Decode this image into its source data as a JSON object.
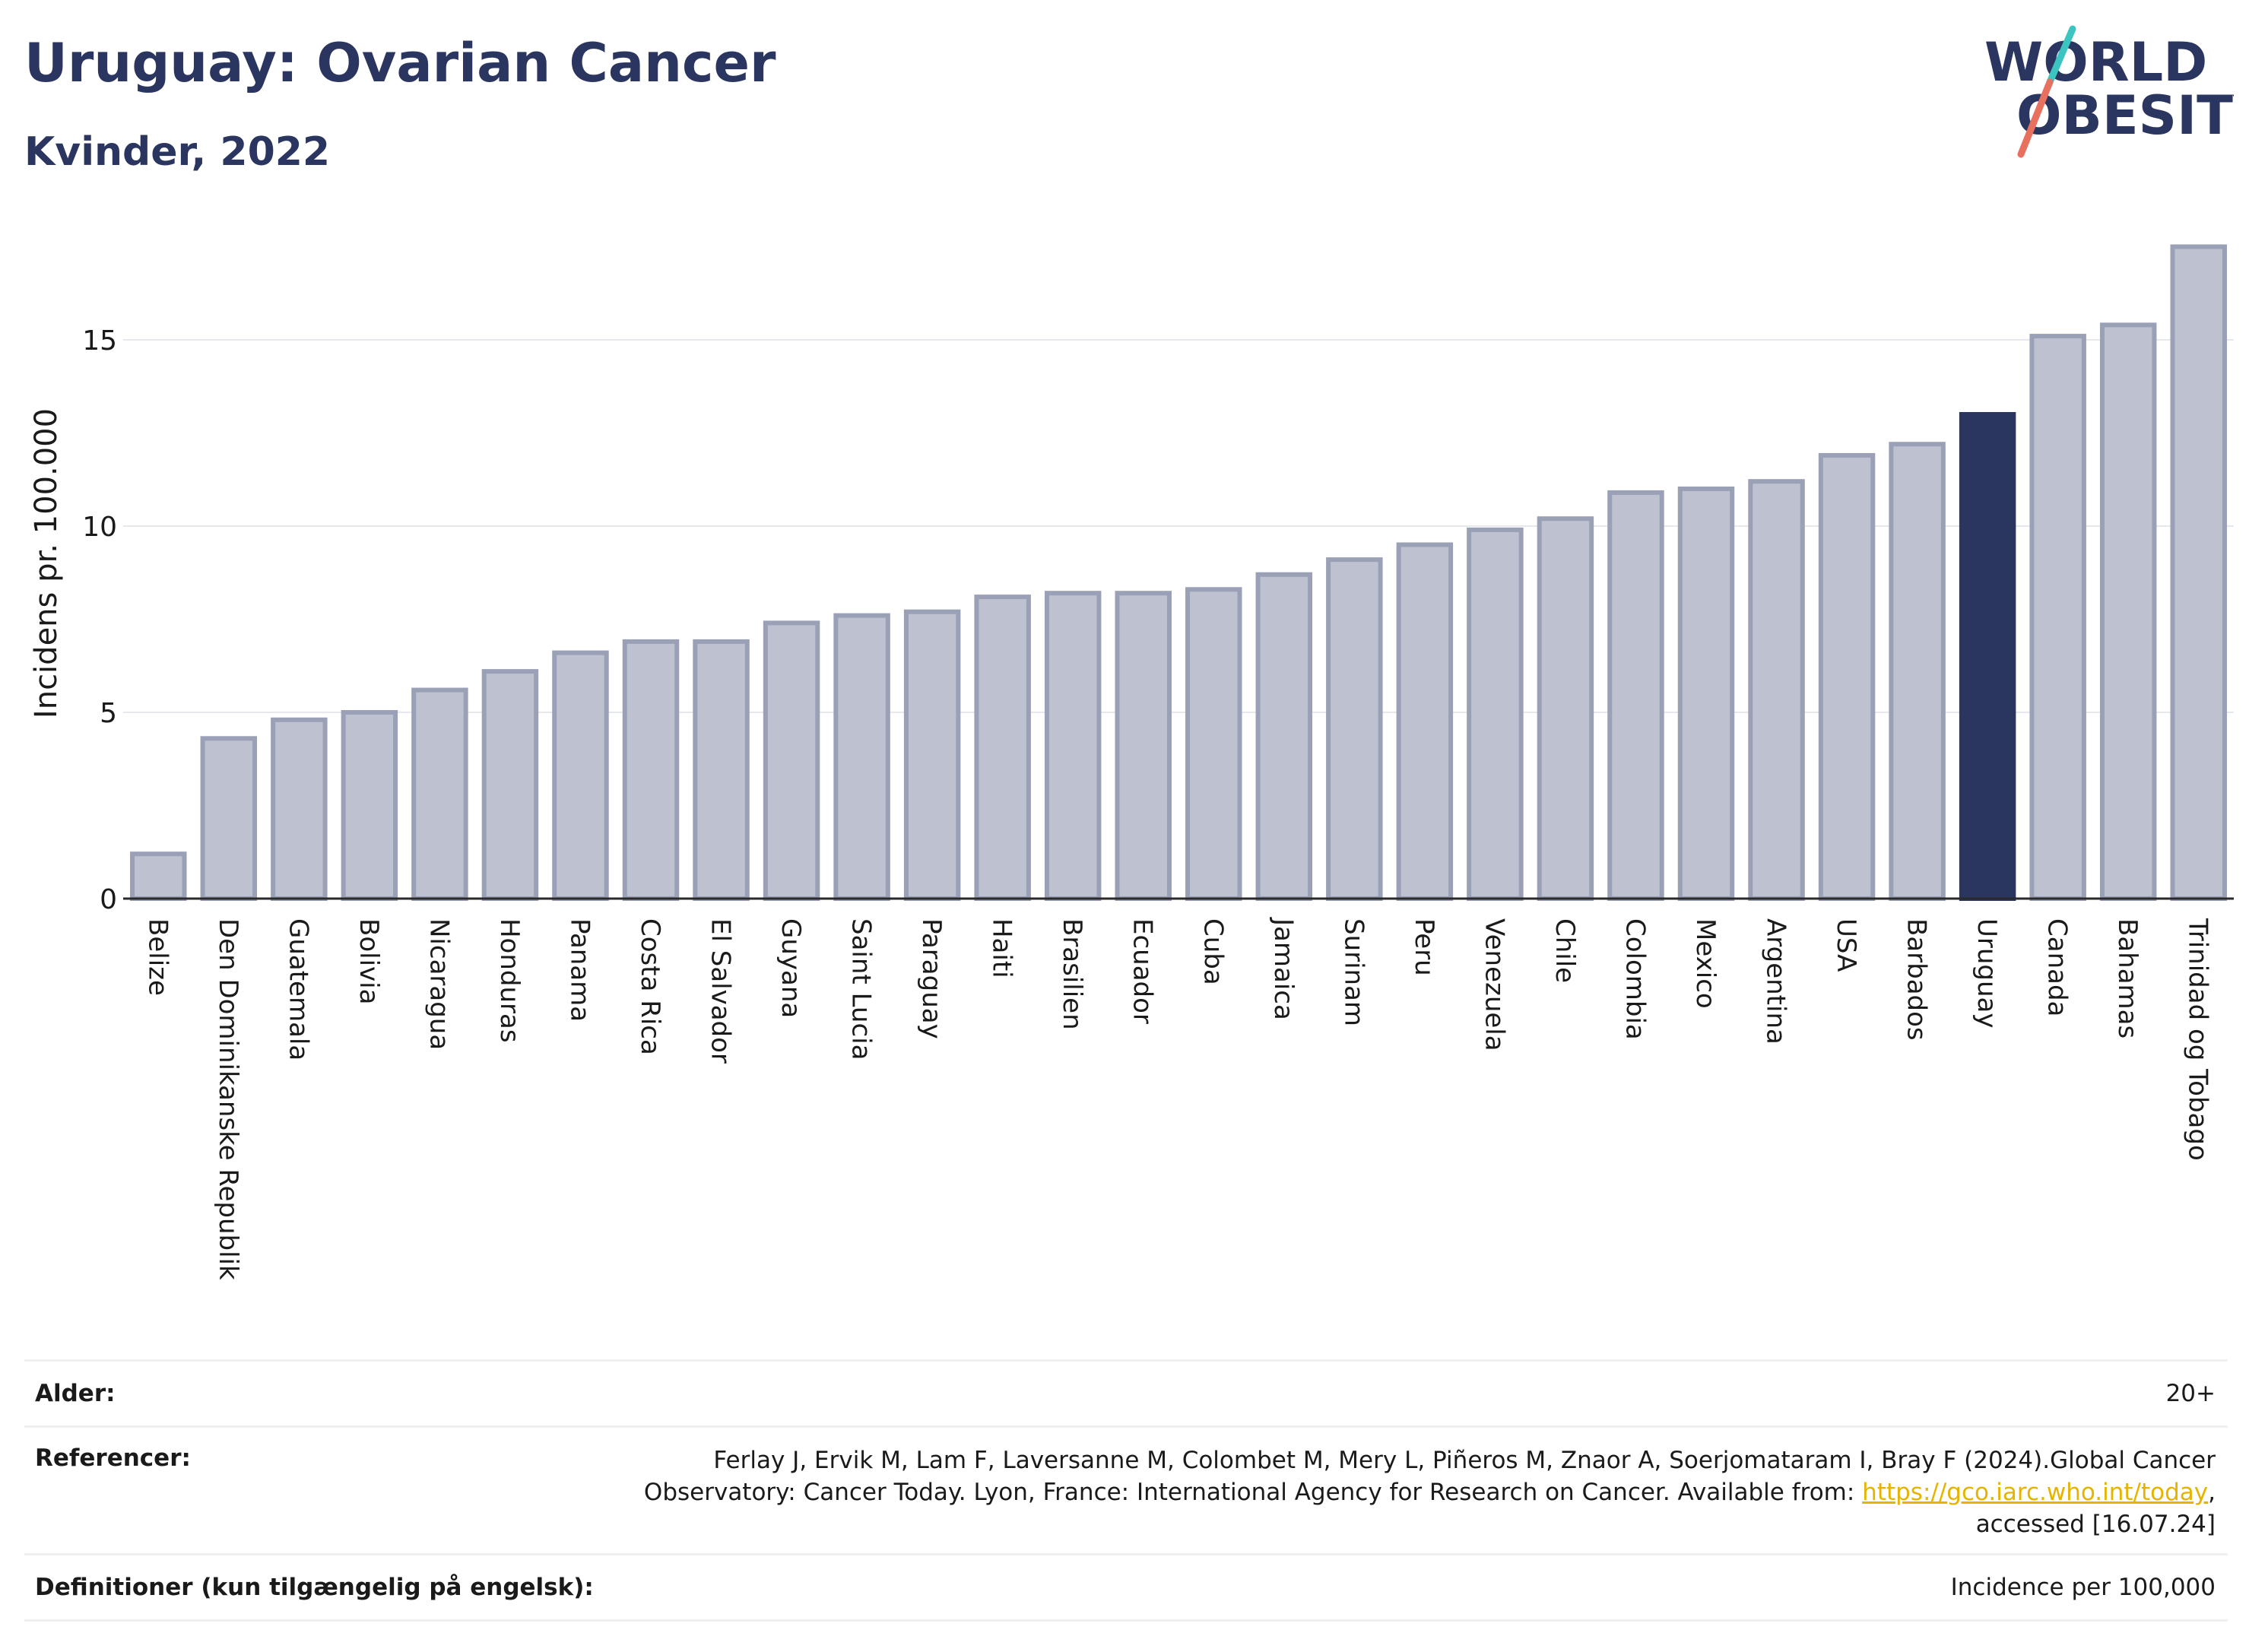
{
  "title": "Uruguay: Ovarian Cancer",
  "subtitle": "Kvinder, 2022",
  "logo": {
    "line1": "WORLD",
    "line2": "OBESITY",
    "slash_colors": [
      "#3cc4c0",
      "#e8705e"
    ]
  },
  "colors": {
    "bar": "#bec2d0",
    "bar_edge": "#9aa0b6",
    "highlight": "#2a3560",
    "text": "#2a3560"
  },
  "chart_data": {
    "type": "bar",
    "ylabel": "Incidens pr. 100.000",
    "ylim": [
      0,
      18
    ],
    "yticks": [
      0,
      5,
      10,
      15
    ],
    "grid": true,
    "highlight": "Uruguay",
    "categories": [
      "Belize",
      "Den Dominikanske Republik",
      "Guatemala",
      "Bolivia",
      "Nicaragua",
      "Honduras",
      "Panama",
      "Costa Rica",
      "El Salvador",
      "Guyana",
      "Saint Lucia",
      "Paraguay",
      "Haiti",
      "Brasilien",
      "Ecuador",
      "Cuba",
      "Jamaica",
      "Surinam",
      "Peru",
      "Venezuela",
      "Chile",
      "Colombia",
      "Mexico",
      "Argentina",
      "USA",
      "Barbados",
      "Uruguay",
      "Canada",
      "Bahamas",
      "Trinidad og Tobago"
    ],
    "values": [
      1.2,
      4.3,
      4.8,
      5.0,
      5.6,
      6.1,
      6.6,
      6.9,
      6.9,
      7.4,
      7.6,
      7.7,
      8.1,
      8.2,
      8.2,
      8.3,
      8.7,
      9.1,
      9.5,
      9.9,
      10.2,
      10.9,
      11.0,
      11.2,
      11.9,
      12.2,
      13.0,
      15.1,
      15.4,
      17.5
    ]
  },
  "footer": {
    "age_label": "Alder:",
    "age_value": "20+",
    "ref_label": "Referencer:",
    "ref_text_1": "Ferlay J, Ervik M, Lam F, Laversanne M, Colombet M, Mery L, Piñeros M, Znaor A, Soerjomataram I, Bray F (2024).Global Cancer Observatory: Cancer Today. Lyon, France: International Agency for Research on Cancer. Available from: ",
    "ref_link": "https://gco.iarc.who.int/today",
    "ref_text_2": ", accessed [16.07.24]",
    "def_label": "Definitioner (kun tilgængelig på engelsk):",
    "def_value": "Incidence per 100,000"
  }
}
